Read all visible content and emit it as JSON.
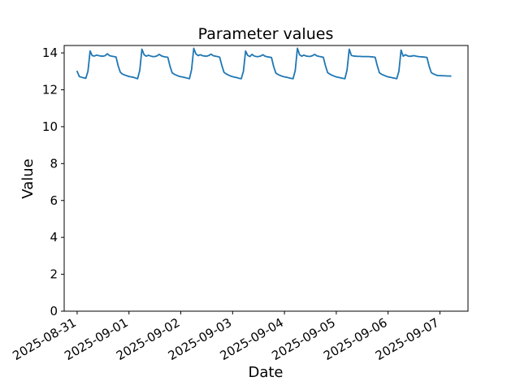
{
  "figure": {
    "background": "#ffffff"
  },
  "chart_data": {
    "type": "line",
    "title": "Parameter values",
    "xlabel": "Date",
    "ylabel": "Value",
    "series_name": "Parameter values",
    "series_color": "#1f77b4",
    "grid": false,
    "legend": "none",
    "x_start": "2025-08-31 00:00",
    "x_step_hours": 1,
    "xlim_hours": [
      -6,
      181
    ],
    "ylim": [
      0,
      14.4
    ],
    "yticks": [
      0,
      2,
      4,
      6,
      8,
      10,
      12,
      14
    ],
    "xticks": [
      {
        "hour": 0,
        "label": "2025-08-31"
      },
      {
        "hour": 24,
        "label": "2025-09-01"
      },
      {
        "hour": 48,
        "label": "2025-09-02"
      },
      {
        "hour": 72,
        "label": "2025-09-03"
      },
      {
        "hour": 96,
        "label": "2025-09-04"
      },
      {
        "hour": 120,
        "label": "2025-09-05"
      },
      {
        "hour": 144,
        "label": "2025-09-06"
      },
      {
        "hour": 168,
        "label": "2025-09-07"
      }
    ],
    "values": [
      13.0,
      12.72,
      12.68,
      12.65,
      12.62,
      13.0,
      14.1,
      13.85,
      13.83,
      13.88,
      13.85,
      13.83,
      13.82,
      13.85,
      13.95,
      13.85,
      13.82,
      13.8,
      13.78,
      13.3,
      12.95,
      12.85,
      12.8,
      12.76,
      12.72,
      12.7,
      12.68,
      12.64,
      12.6,
      13.05,
      14.2,
      13.9,
      13.82,
      13.87,
      13.83,
      13.8,
      13.8,
      13.84,
      13.92,
      13.84,
      13.8,
      13.78,
      13.76,
      13.28,
      12.92,
      12.84,
      12.79,
      12.74,
      12.71,
      12.69,
      12.66,
      12.63,
      12.6,
      13.1,
      14.25,
      13.95,
      13.85,
      13.9,
      13.85,
      13.83,
      13.82,
      13.86,
      13.93,
      13.85,
      13.82,
      13.8,
      13.77,
      13.32,
      12.95,
      12.86,
      12.8,
      12.75,
      12.71,
      12.68,
      12.66,
      12.62,
      12.6,
      13.0,
      14.1,
      13.86,
      13.8,
      13.92,
      13.83,
      13.8,
      13.8,
      13.83,
      13.9,
      13.82,
      13.79,
      13.77,
      13.75,
      13.26,
      12.91,
      12.83,
      12.78,
      12.73,
      12.7,
      12.68,
      12.65,
      12.62,
      12.6,
      13.05,
      14.25,
      13.9,
      13.82,
      13.88,
      13.83,
      13.81,
      13.81,
      13.85,
      13.92,
      13.84,
      13.81,
      13.79,
      13.76,
      13.3,
      12.93,
      12.85,
      12.79,
      12.74,
      12.7,
      12.67,
      12.65,
      12.62,
      12.6,
      13.08,
      14.2,
      13.86,
      13.83,
      13.82,
      13.81,
      13.81,
      13.8,
      13.8,
      13.8,
      13.8,
      13.79,
      13.78,
      13.76,
      13.3,
      12.92,
      12.84,
      12.79,
      12.74,
      12.7,
      12.68,
      12.65,
      12.63,
      12.6,
      13.0,
      14.15,
      13.82,
      13.9,
      13.84,
      13.81,
      13.83,
      13.85,
      13.82,
      13.8,
      13.79,
      13.78,
      13.77,
      13.75,
      13.28,
      12.93,
      12.86,
      12.81,
      12.77,
      12.77,
      12.76,
      12.76,
      12.75,
      12.75,
      12.74
    ]
  }
}
